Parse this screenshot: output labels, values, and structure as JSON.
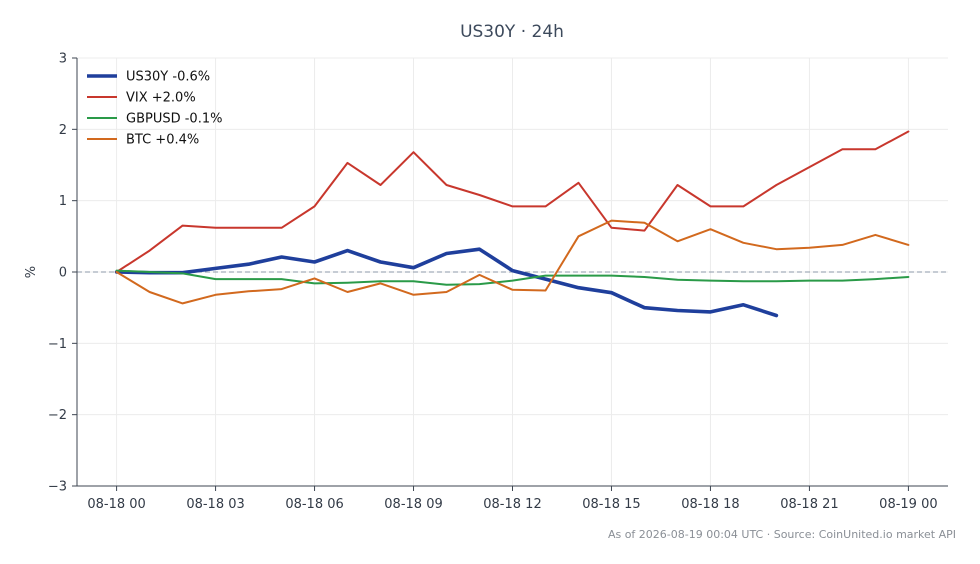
{
  "chart_data": {
    "type": "line",
    "title": "US30Y · 24h",
    "ylabel": "%",
    "xlabel": "",
    "ylim": [
      -3,
      3
    ],
    "yticks": [
      3,
      2,
      1,
      0,
      -1,
      -2,
      -3
    ],
    "ytick_labels": [
      "3",
      "2",
      "1",
      "0",
      "−1",
      "−2",
      "−3"
    ],
    "xlim": [
      -1.2,
      25.2
    ],
    "xticks": [
      0,
      3,
      6,
      9,
      12,
      15,
      18,
      21,
      24
    ],
    "xtick_labels": [
      "08-18 00",
      "08-18 03",
      "08-18 06",
      "08-18 09",
      "08-18 12",
      "08-18 15",
      "08-18 18",
      "08-18 21",
      "08-19 00"
    ],
    "grid": true,
    "zero_line": true,
    "legend_position": "top-left",
    "series": [
      {
        "name": "US30Y -0.6%",
        "color": "#1f3f9c",
        "width": "thick",
        "x": [
          0,
          1,
          2,
          3,
          4,
          5,
          6,
          7,
          8,
          9,
          10,
          11,
          12,
          13,
          14,
          15,
          16,
          17,
          18,
          19,
          20
        ],
        "values": [
          0.0,
          -0.01,
          -0.01,
          0.05,
          0.11,
          0.21,
          0.14,
          0.3,
          0.14,
          0.06,
          0.26,
          0.32,
          0.02,
          -0.1,
          -0.22,
          -0.29,
          -0.5,
          -0.54,
          -0.56,
          -0.46,
          -0.61
        ]
      },
      {
        "name": "VIX +2.0%",
        "color": "#c8372d",
        "width": "normal",
        "x": [
          0,
          1,
          2,
          3,
          4,
          5,
          6,
          7,
          8,
          9,
          10,
          11,
          12,
          13,
          14,
          15,
          16,
          17,
          18,
          19,
          20,
          21,
          22,
          23,
          24
        ],
        "values": [
          0.0,
          0.3,
          0.65,
          0.62,
          0.62,
          0.62,
          0.92,
          1.53,
          1.22,
          1.68,
          1.22,
          1.08,
          0.92,
          0.92,
          1.25,
          0.62,
          0.58,
          1.22,
          0.92,
          0.92,
          1.22,
          1.47,
          1.72,
          1.72,
          1.97
        ]
      },
      {
        "name": "GBPUSD -0.1%",
        "color": "#2a9a48",
        "width": "normal",
        "x": [
          0,
          1,
          2,
          3,
          4,
          5,
          6,
          7,
          8,
          9,
          10,
          11,
          12,
          13,
          14,
          15,
          16,
          17,
          18,
          19,
          20,
          21,
          22,
          23,
          24
        ],
        "values": [
          0.02,
          0.0,
          -0.02,
          -0.1,
          -0.1,
          -0.1,
          -0.16,
          -0.15,
          -0.13,
          -0.13,
          -0.18,
          -0.17,
          -0.12,
          -0.05,
          -0.05,
          -0.05,
          -0.07,
          -0.11,
          -0.12,
          -0.13,
          -0.13,
          -0.12,
          -0.12,
          -0.1,
          -0.07
        ]
      },
      {
        "name": "BTC +0.4%",
        "color": "#d2691e",
        "width": "normal",
        "x": [
          0,
          1,
          2,
          3,
          4,
          5,
          6,
          7,
          8,
          9,
          10,
          11,
          12,
          13,
          14,
          15,
          16,
          17,
          18,
          19,
          20,
          21,
          22,
          23,
          24
        ],
        "values": [
          0.0,
          -0.28,
          -0.44,
          -0.32,
          -0.27,
          -0.24,
          -0.09,
          -0.28,
          -0.16,
          -0.32,
          -0.28,
          -0.04,
          -0.25,
          -0.26,
          0.5,
          0.72,
          0.69,
          0.43,
          0.6,
          0.41,
          0.32,
          0.34,
          0.38,
          0.52,
          0.38
        ]
      }
    ],
    "footer": "As of 2026-08-19 00:04 UTC · Source: CoinUnited.io market API"
  }
}
